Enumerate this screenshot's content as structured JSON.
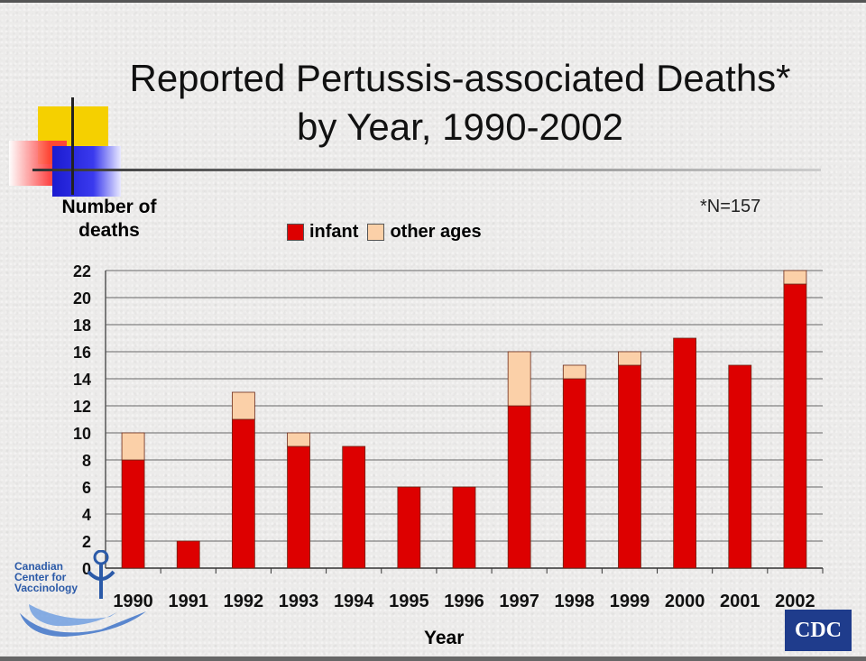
{
  "title": {
    "line1": "Reported Pertussis-associated Deaths*",
    "line2": "by Year, 1990-2002"
  },
  "footnote": "*N=157",
  "ylabel": "Number of deaths",
  "xlabel": "Year",
  "logos": {
    "ccfv_text": [
      "Canadian",
      "Center for",
      "Vaccinology"
    ],
    "cdc_text": "CDC"
  },
  "colors": {
    "infant": "#dd0000",
    "other_ages": "#fbd0a8",
    "grid": "#666666"
  },
  "chart_data": {
    "type": "bar",
    "stacked": true,
    "categories": [
      "1990",
      "1991",
      "1992",
      "1993",
      "1994",
      "1995",
      "1996",
      "1997",
      "1998",
      "1999",
      "2000",
      "2001",
      "2002"
    ],
    "series": [
      {
        "name": "infant",
        "values": [
          8,
          2,
          11,
          9,
          9,
          6,
          6,
          12,
          14,
          15,
          17,
          15,
          21
        ]
      },
      {
        "name": "other ages",
        "values": [
          2,
          0,
          2,
          1,
          0,
          0,
          0,
          4,
          1,
          1,
          0,
          0,
          1
        ]
      }
    ],
    "title": "Reported Pertussis-associated Deaths* by Year, 1990-2002",
    "xlabel": "Year",
    "ylabel": "Number of deaths",
    "ylim": [
      0,
      22
    ],
    "yticks": [
      0,
      2,
      4,
      6,
      8,
      10,
      12,
      14,
      16,
      18,
      20,
      22
    ],
    "grid": true,
    "legend": "top-center"
  }
}
